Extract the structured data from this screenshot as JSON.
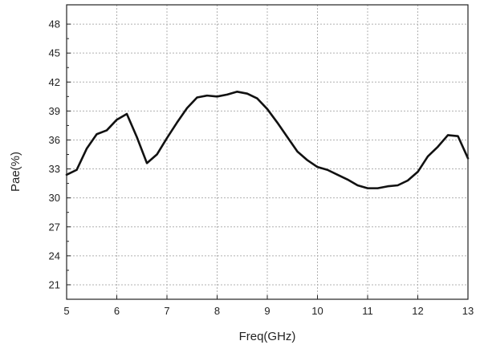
{
  "chart_data": {
    "type": "line",
    "title": "",
    "xlabel": "Freq(GHz)",
    "ylabel": "Pae(%)",
    "xlim": [
      5,
      13
    ],
    "ylim": [
      19.5,
      50
    ],
    "xticks": [
      5,
      6,
      7,
      8,
      9,
      10,
      11,
      12,
      13
    ],
    "yticks": [
      21,
      24,
      27,
      30,
      33,
      36,
      39,
      42,
      45,
      48
    ],
    "grid": true,
    "grid_style": "dotted",
    "colors": {
      "line": "#111111",
      "grid": "#b0b0b0",
      "axis": "#222222"
    },
    "series": [
      {
        "x": [
          5.0,
          5.2,
          5.4,
          5.6,
          5.8,
          6.0,
          6.2,
          6.4,
          6.6,
          6.8,
          7.0,
          7.2,
          7.4,
          7.6,
          7.8,
          8.0,
          8.2,
          8.4,
          8.6,
          8.8,
          9.0,
          9.2,
          9.4,
          9.6,
          9.8,
          10.0,
          10.2,
          10.4,
          10.6,
          10.8,
          11.0,
          11.2,
          11.4,
          11.6,
          11.8,
          12.0,
          12.2,
          12.4,
          12.6,
          12.8,
          13.0
        ],
        "y": [
          32.4,
          32.9,
          35.1,
          36.6,
          37.0,
          38.1,
          38.7,
          36.3,
          33.6,
          34.5,
          36.2,
          37.8,
          39.3,
          40.4,
          40.6,
          40.5,
          40.7,
          41.0,
          40.8,
          40.3,
          39.2,
          37.8,
          36.3,
          34.8,
          33.9,
          33.2,
          32.9,
          32.4,
          31.9,
          31.3,
          31.0,
          31.0,
          31.2,
          31.3,
          31.8,
          32.7,
          34.3,
          35.3,
          36.5,
          36.4,
          34.1
        ]
      }
    ]
  }
}
